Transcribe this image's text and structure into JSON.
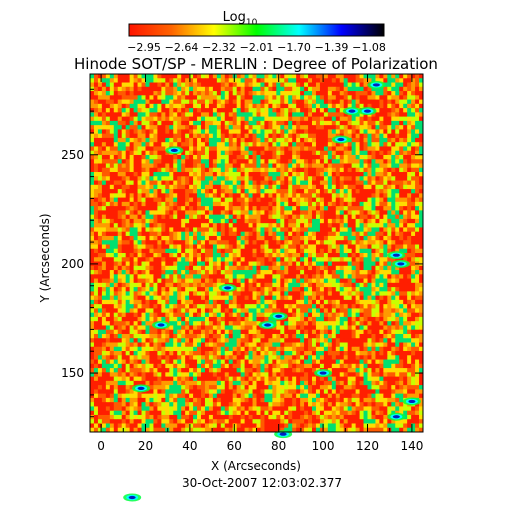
{
  "chart_data": {
    "type": "heatmap",
    "title": "Hinode SOT/SP - MERLIN : Degree of Polarization",
    "xlabel": "X (Arcseconds)",
    "ylabel": "Y (Arcseconds)",
    "xlim": [
      -5,
      145
    ],
    "ylim": [
      123,
      287
    ],
    "x_ticks": [
      "0",
      "20",
      "40",
      "60",
      "80",
      "100",
      "120",
      "140"
    ],
    "y_ticks": [
      "150",
      "200",
      "250"
    ],
    "colorbar": {
      "title": "Log",
      "title_subscript": "10",
      "range": [
        -2.95,
        -1.08
      ],
      "tick_labels": [
        "−2.95",
        "−2.64",
        "−2.32",
        "−2.01",
        "−1.70",
        "−1.39",
        "−1.08"
      ],
      "colors": [
        "#ff1400",
        "#ff6400",
        "#ffff00",
        "#00ff00",
        "#00ffff",
        "#0000ff",
        "#000000"
      ]
    },
    "footer": "30-Oct-2007 12:03:02.377"
  }
}
